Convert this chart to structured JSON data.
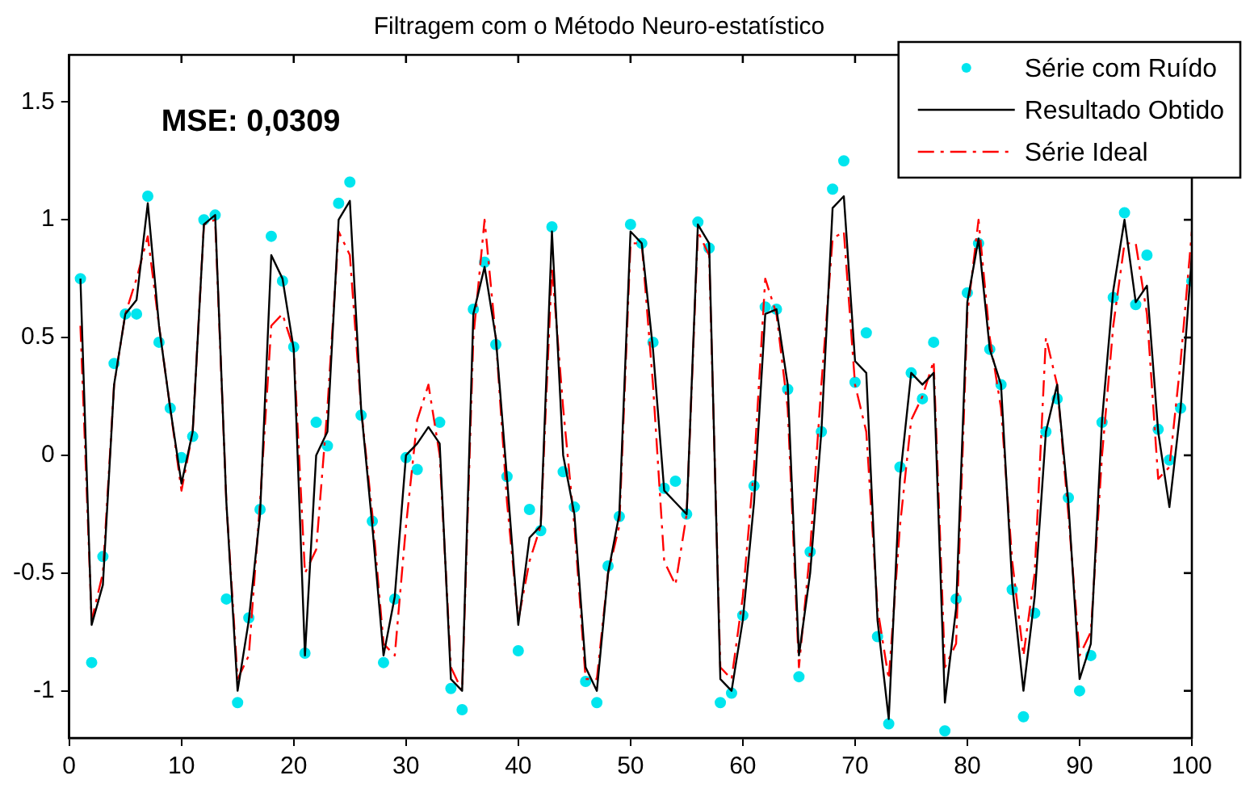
{
  "chart_data": {
    "type": "line",
    "title": "Filtragem com o Método Neuro-estatístico",
    "annotations": [
      "MSE: 0,0309"
    ],
    "x": [
      1,
      2,
      3,
      4,
      5,
      6,
      7,
      8,
      9,
      10,
      11,
      12,
      13,
      14,
      15,
      16,
      17,
      18,
      19,
      20,
      21,
      22,
      23,
      24,
      25,
      26,
      27,
      28,
      29,
      30,
      31,
      32,
      33,
      34,
      35,
      36,
      37,
      38,
      39,
      40,
      41,
      42,
      43,
      44,
      45,
      46,
      47,
      48,
      49,
      50,
      51,
      52,
      53,
      54,
      55,
      56,
      57,
      58,
      59,
      60,
      61,
      62,
      63,
      64,
      65,
      66,
      67,
      68,
      69,
      70,
      71,
      72,
      73,
      74,
      75,
      76,
      77,
      78,
      79,
      80,
      81,
      82,
      83,
      84,
      85,
      86,
      87,
      88,
      89,
      90,
      91,
      92,
      93,
      94,
      95,
      96,
      97,
      98,
      99,
      100
    ],
    "series": [
      {
        "name": "Série com Ruído",
        "type": "scatter",
        "marker": "circle",
        "color": "#00e5ee",
        "values": [
          0.75,
          -0.88,
          -0.43,
          0.39,
          0.6,
          0.6,
          1.1,
          0.48,
          0.2,
          -0.01,
          0.08,
          1.0,
          1.02,
          -0.61,
          -1.05,
          -0.69,
          -0.23,
          0.93,
          0.74,
          0.46,
          -0.84,
          0.14,
          0.04,
          1.07,
          1.16,
          0.17,
          -0.28,
          -0.88,
          -0.61,
          -0.01,
          -0.06,
          null,
          0.14,
          -0.99,
          -1.08,
          0.62,
          0.82,
          0.47,
          -0.09,
          -0.83,
          -0.23,
          -0.32,
          0.97,
          -0.07,
          -0.22,
          -0.96,
          -1.05,
          -0.47,
          -0.26,
          0.98,
          0.9,
          0.48,
          -0.14,
          -0.11,
          -0.25,
          0.99,
          0.88,
          -1.05,
          -1.01,
          -0.68,
          -0.13,
          0.63,
          0.62,
          0.28,
          -0.94,
          -0.41,
          0.1,
          1.13,
          1.25,
          0.31,
          0.52,
          -0.77,
          -1.14,
          -0.05,
          0.35,
          0.24,
          0.48,
          -1.17,
          -0.61,
          0.69,
          0.9,
          0.45,
          0.3,
          -0.57,
          -1.11,
          -0.67,
          0.1,
          0.24,
          -0.18,
          -1.0,
          -0.85,
          0.14,
          0.67,
          1.03,
          0.64,
          0.85,
          0.11,
          -0.02,
          0.2,
          0.74
        ]
      },
      {
        "name": "Resultado Obtido",
        "marker": "none",
        "line_style": "solid",
        "color": "#000000",
        "values": [
          0.75,
          -0.72,
          -0.55,
          0.3,
          0.6,
          0.66,
          1.07,
          0.55,
          0.2,
          -0.12,
          0.1,
          0.98,
          1.02,
          -0.2,
          -1.0,
          -0.7,
          -0.25,
          0.85,
          0.75,
          0.45,
          -0.85,
          0.0,
          0.1,
          1.0,
          1.08,
          0.2,
          -0.3,
          -0.85,
          -0.6,
          0.0,
          0.05,
          0.12,
          0.05,
          -0.95,
          -1.0,
          0.6,
          0.8,
          0.5,
          -0.1,
          -0.72,
          -0.35,
          -0.3,
          0.95,
          0.0,
          -0.25,
          -0.9,
          -1.0,
          -0.5,
          -0.25,
          0.95,
          0.9,
          0.45,
          -0.15,
          -0.2,
          -0.25,
          0.98,
          0.9,
          -0.95,
          -1.0,
          -0.7,
          -0.2,
          0.6,
          0.62,
          0.3,
          -0.85,
          -0.5,
          0.1,
          1.05,
          1.1,
          0.4,
          0.35,
          -0.7,
          -1.12,
          -0.1,
          0.35,
          0.3,
          0.35,
          -1.05,
          -0.65,
          0.65,
          0.92,
          0.45,
          0.3,
          -0.55,
          -1.0,
          -0.6,
          0.1,
          0.3,
          -0.2,
          -0.95,
          -0.8,
          0.15,
          0.7,
          1.0,
          0.65,
          0.72,
          0.1,
          -0.22,
          0.2,
          0.85
        ]
      },
      {
        "name": "Série Ideal",
        "marker": "none",
        "line_style": "dashed",
        "color": "#ff0000",
        "values": [
          0.55,
          -0.7,
          -0.5,
          0.3,
          0.6,
          0.75,
          0.93,
          0.55,
          0.2,
          -0.15,
          0.1,
          0.98,
          1.0,
          -0.2,
          -0.95,
          -0.85,
          -0.2,
          0.55,
          0.6,
          0.45,
          -0.5,
          -0.4,
          0.2,
          0.95,
          0.85,
          0.2,
          -0.25,
          -0.8,
          -0.85,
          -0.3,
          0.15,
          0.3,
          0.0,
          -0.9,
          -1.0,
          0.5,
          1.0,
          0.5,
          -0.2,
          -0.7,
          -0.45,
          -0.3,
          0.8,
          0.2,
          -0.3,
          -0.95,
          -0.95,
          -0.5,
          -0.3,
          0.9,
          0.9,
          0.3,
          -0.45,
          -0.55,
          -0.25,
          0.95,
          0.85,
          -0.9,
          -0.95,
          -0.6,
          -0.05,
          0.75,
          0.6,
          0.2,
          -0.9,
          -0.4,
          0.3,
          0.92,
          0.95,
          0.3,
          0.1,
          -0.65,
          -0.95,
          -0.3,
          0.15,
          0.25,
          0.4,
          -0.9,
          -0.8,
          0.6,
          1.0,
          0.5,
          0.2,
          -0.45,
          -0.85,
          -0.5,
          0.5,
          0.3,
          -0.25,
          -0.85,
          -0.75,
          0.0,
          0.55,
          0.9,
          0.9,
          0.6,
          -0.1,
          -0.05,
          0.4,
          0.95
        ]
      }
    ],
    "xlim": [
      0,
      100
    ],
    "xticks": [
      0,
      10,
      20,
      30,
      40,
      50,
      60,
      70,
      80,
      90,
      100
    ],
    "ylim": [
      -1.2,
      1.7
    ],
    "yticks": [
      -1,
      {
        "value": -0.5,
        "label": "-0.5"
      },
      0,
      {
        "value": 0.5,
        "label": "0.5"
      },
      1,
      {
        "value": 1.5,
        "label": "1.5"
      }
    ],
    "grid": false,
    "legend": "top right"
  }
}
